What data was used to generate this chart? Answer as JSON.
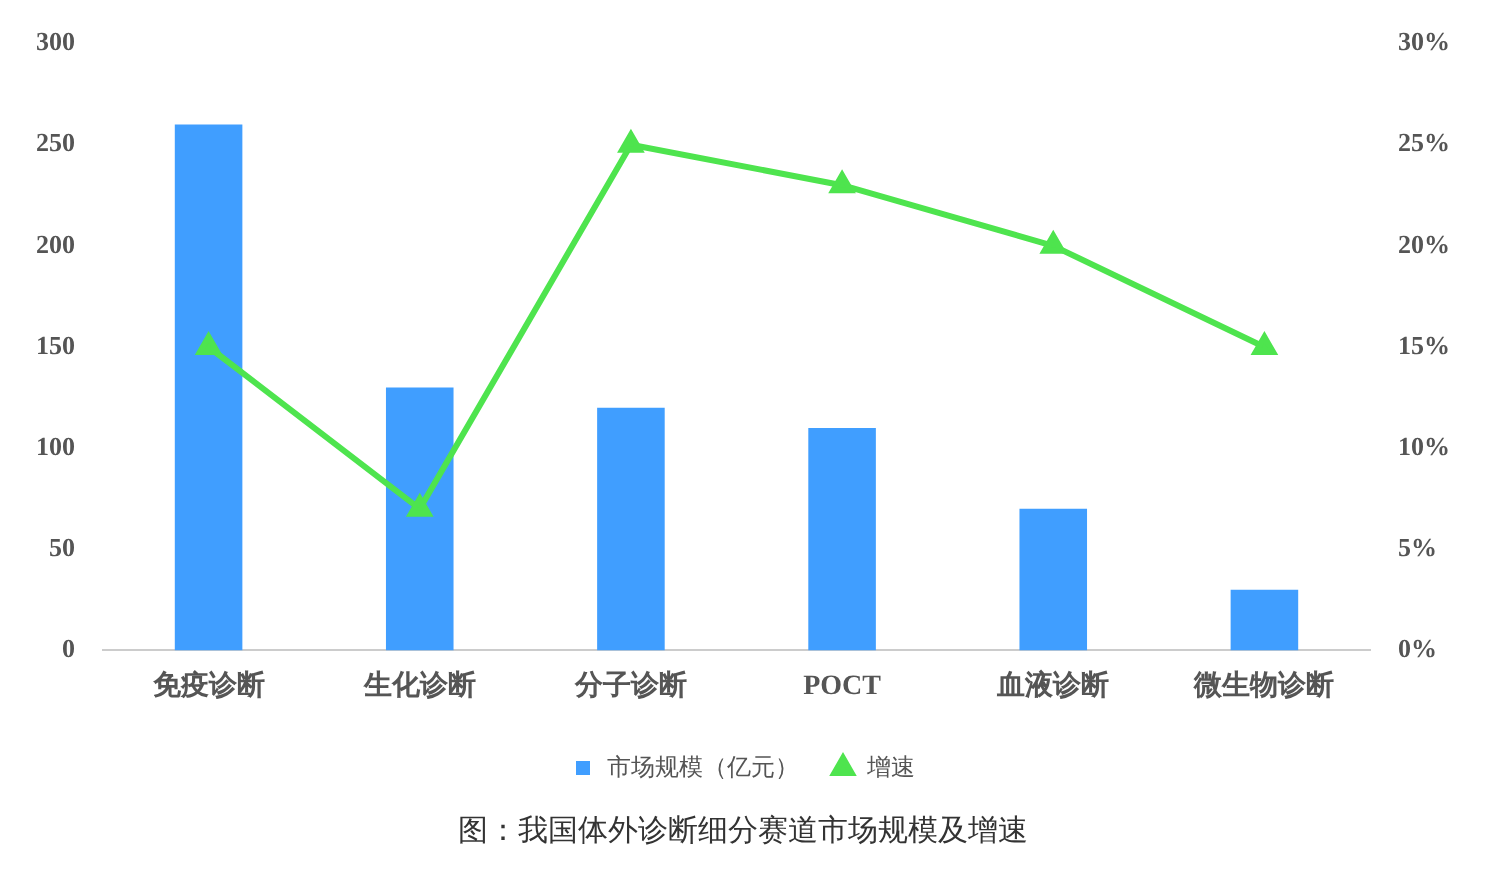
{
  "chart_data": {
    "type": "bar",
    "categories": [
      "免疫诊断",
      "生化诊断",
      "分子诊断",
      "POCT",
      "血液诊断",
      "微生物诊断"
    ],
    "series": [
      {
        "name": "市场规模（亿元）",
        "color": "#409eff",
        "values": [
          260,
          130,
          120,
          110,
          70,
          30
        ]
      },
      {
        "name": "增速",
        "type": "line",
        "axis": "y2",
        "color": "#4ee44e",
        "values": [
          15,
          7,
          25,
          23,
          20,
          15
        ]
      }
    ],
    "ylim": [
      0,
      300
    ],
    "yticks": [
      0,
      50,
      100,
      150,
      200,
      250,
      300
    ],
    "y2lim": [
      0,
      30
    ],
    "y2ticks": [
      {
        "value": 0,
        "label": "0%"
      },
      {
        "value": 5,
        "label": "5%"
      },
      {
        "value": 10,
        "label": "10%"
      },
      {
        "value": 15,
        "label": "15%"
      },
      {
        "value": 20,
        "label": "20%"
      },
      {
        "value": 25,
        "label": "25%"
      },
      {
        "value": 30,
        "label": "30%"
      }
    ],
    "grid": false,
    "legend": "bottom",
    "marker": "triangle",
    "line_style": "solid",
    "annotations": [
      "图：我国体外诊断细分赛道市场规模及增速"
    ]
  }
}
